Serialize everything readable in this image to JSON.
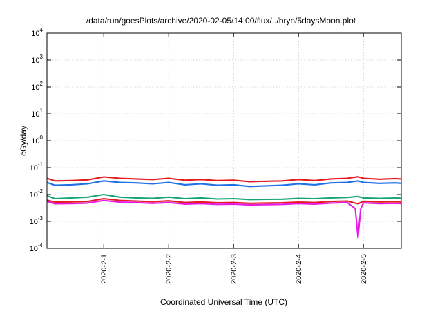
{
  "chart_data": {
    "type": "line",
    "title": "/data/run/goesPlots/archive/2020-02-05/14:00/flux/../bryn/5daysMoon.plot",
    "xlabel": "Coordinated Universal Time (UTC)",
    "ylabel": "cGy/day",
    "yscale": "log",
    "ylim": [
      0.0001,
      10000
    ],
    "xlim": [
      "2020-01-31T03:00",
      "2020-02-05T14:00"
    ],
    "grid": true,
    "y_ticks": [
      {
        "value": 0.0001,
        "base": "10",
        "exp": "-4"
      },
      {
        "value": 0.001,
        "base": "10",
        "exp": "-3"
      },
      {
        "value": 0.01,
        "base": "10",
        "exp": "-2"
      },
      {
        "value": 0.1,
        "base": "10",
        "exp": "-1"
      },
      {
        "value": 1,
        "base": "10",
        "exp": "0"
      },
      {
        "value": 10,
        "base": "10",
        "exp": "1"
      },
      {
        "value": 100,
        "base": "10",
        "exp": "2"
      },
      {
        "value": 1000,
        "base": "10",
        "exp": "3"
      },
      {
        "value": 10000,
        "base": "10",
        "exp": "4"
      }
    ],
    "x_ticks": [
      {
        "value": "2020-02-01T00:00",
        "label": "2020-2-1"
      },
      {
        "value": "2020-02-02T00:00",
        "label": "2020-2-2"
      },
      {
        "value": "2020-02-03T00:00",
        "label": "2020-2-3"
      },
      {
        "value": "2020-02-04T00:00",
        "label": "2020-2-4"
      },
      {
        "value": "2020-02-05T00:00",
        "label": "2020-2-5"
      }
    ],
    "series": [
      {
        "color": "#e41a1c",
        "x": [
          "2020-01-31T03:00",
          "2020-01-31T06:00",
          "2020-01-31T12:00",
          "2020-01-31T18:00",
          "2020-02-01T00:00",
          "2020-02-01T06:00",
          "2020-02-01T12:00",
          "2020-02-01T18:00",
          "2020-02-02T00:00",
          "2020-02-02T06:00",
          "2020-02-02T12:00",
          "2020-02-02T18:00",
          "2020-02-03T00:00",
          "2020-02-03T06:00",
          "2020-02-03T12:00",
          "2020-02-03T18:00",
          "2020-02-04T00:00",
          "2020-02-04T06:00",
          "2020-02-04T12:00",
          "2020-02-04T18:00",
          "2020-02-04T22:00",
          "2020-02-05T00:00",
          "2020-02-05T06:00",
          "2020-02-05T12:00",
          "2020-02-05T14:00"
        ],
        "values": [
          0.04,
          0.032,
          0.033,
          0.035,
          0.045,
          0.04,
          0.038,
          0.036,
          0.04,
          0.034,
          0.036,
          0.033,
          0.034,
          0.03,
          0.031,
          0.032,
          0.036,
          0.033,
          0.038,
          0.04,
          0.046,
          0.04,
          0.037,
          0.039,
          0.038
        ]
      },
      {
        "color": "#1f6fe5",
        "x": [
          "2020-01-31T03:00",
          "2020-01-31T06:00",
          "2020-01-31T12:00",
          "2020-01-31T18:00",
          "2020-02-01T00:00",
          "2020-02-01T06:00",
          "2020-02-01T12:00",
          "2020-02-01T18:00",
          "2020-02-02T00:00",
          "2020-02-02T06:00",
          "2020-02-02T12:00",
          "2020-02-02T18:00",
          "2020-02-03T00:00",
          "2020-02-03T06:00",
          "2020-02-03T12:00",
          "2020-02-03T18:00",
          "2020-02-04T00:00",
          "2020-02-04T06:00",
          "2020-02-04T12:00",
          "2020-02-04T18:00",
          "2020-02-04T22:00",
          "2020-02-05T00:00",
          "2020-02-05T06:00",
          "2020-02-05T12:00",
          "2020-02-05T14:00"
        ],
        "values": [
          0.028,
          0.022,
          0.023,
          0.025,
          0.032,
          0.028,
          0.027,
          0.025,
          0.028,
          0.023,
          0.025,
          0.022,
          0.023,
          0.02,
          0.021,
          0.022,
          0.025,
          0.023,
          0.027,
          0.028,
          0.032,
          0.028,
          0.026,
          0.027,
          0.026
        ]
      },
      {
        "color": "#1aa37a",
        "x": [
          "2020-01-31T03:00",
          "2020-01-31T06:00",
          "2020-01-31T12:00",
          "2020-01-31T18:00",
          "2020-02-01T00:00",
          "2020-02-01T06:00",
          "2020-02-01T12:00",
          "2020-02-01T18:00",
          "2020-02-02T00:00",
          "2020-02-02T06:00",
          "2020-02-02T12:00",
          "2020-02-02T18:00",
          "2020-02-03T00:00",
          "2020-02-03T06:00",
          "2020-02-03T12:00",
          "2020-02-03T18:00",
          "2020-02-04T00:00",
          "2020-02-04T06:00",
          "2020-02-04T12:00",
          "2020-02-04T18:00",
          "2020-02-04T22:00",
          "2020-02-05T00:00",
          "2020-02-05T06:00",
          "2020-02-05T12:00",
          "2020-02-05T14:00"
        ],
        "values": [
          0.009,
          0.007,
          0.0075,
          0.008,
          0.01,
          0.008,
          0.0075,
          0.0072,
          0.008,
          0.007,
          0.0075,
          0.0068,
          0.007,
          0.0065,
          0.0066,
          0.0067,
          0.0072,
          0.007,
          0.0075,
          0.0078,
          0.0085,
          0.0075,
          0.0072,
          0.0074,
          0.0073
        ]
      },
      {
        "color": "#e41a1c",
        "x": [
          "2020-01-31T03:00",
          "2020-01-31T06:00",
          "2020-01-31T12:00",
          "2020-01-31T18:00",
          "2020-02-01T00:00",
          "2020-02-01T06:00",
          "2020-02-01T12:00",
          "2020-02-01T18:00",
          "2020-02-02T00:00",
          "2020-02-02T06:00",
          "2020-02-02T12:00",
          "2020-02-02T18:00",
          "2020-02-03T00:00",
          "2020-02-03T06:00",
          "2020-02-03T12:00",
          "2020-02-03T18:00",
          "2020-02-04T00:00",
          "2020-02-04T06:00",
          "2020-02-04T12:00",
          "2020-02-04T18:00",
          "2020-02-04T22:00",
          "2020-02-05T00:00",
          "2020-02-05T06:00",
          "2020-02-05T12:00",
          "2020-02-05T14:00"
        ],
        "values": [
          0.0062,
          0.0052,
          0.0053,
          0.0055,
          0.007,
          0.006,
          0.0057,
          0.0054,
          0.0058,
          0.005,
          0.0053,
          0.0049,
          0.005,
          0.0047,
          0.0048,
          0.0049,
          0.0052,
          0.005,
          0.0055,
          0.0057,
          0.0045,
          0.0056,
          0.0053,
          0.0054,
          0.0053
        ]
      },
      {
        "color": "#e619e6",
        "x": [
          "2020-01-31T03:00",
          "2020-01-31T06:00",
          "2020-01-31T12:00",
          "2020-01-31T18:00",
          "2020-02-01T00:00",
          "2020-02-01T06:00",
          "2020-02-01T12:00",
          "2020-02-01T18:00",
          "2020-02-02T00:00",
          "2020-02-02T06:00",
          "2020-02-02T12:00",
          "2020-02-02T18:00",
          "2020-02-03T00:00",
          "2020-02-03T06:00",
          "2020-02-03T12:00",
          "2020-02-03T18:00",
          "2020-02-04T00:00",
          "2020-02-04T06:00",
          "2020-02-04T12:00",
          "2020-02-04T18:00",
          "2020-02-04T21:00",
          "2020-02-04T22:00",
          "2020-02-04T23:00",
          "2020-02-05T00:00",
          "2020-02-05T06:00",
          "2020-02-05T12:00",
          "2020-02-05T14:00"
        ],
        "values": [
          0.0055,
          0.0045,
          0.0046,
          0.0048,
          0.006,
          0.0052,
          0.005,
          0.0047,
          0.005,
          0.0044,
          0.0046,
          0.0043,
          0.0044,
          0.0041,
          0.0042,
          0.0043,
          0.0046,
          0.0044,
          0.0048,
          0.005,
          0.003,
          0.00025,
          0.003,
          0.0049,
          0.0046,
          0.0047,
          0.0046
        ]
      }
    ]
  }
}
